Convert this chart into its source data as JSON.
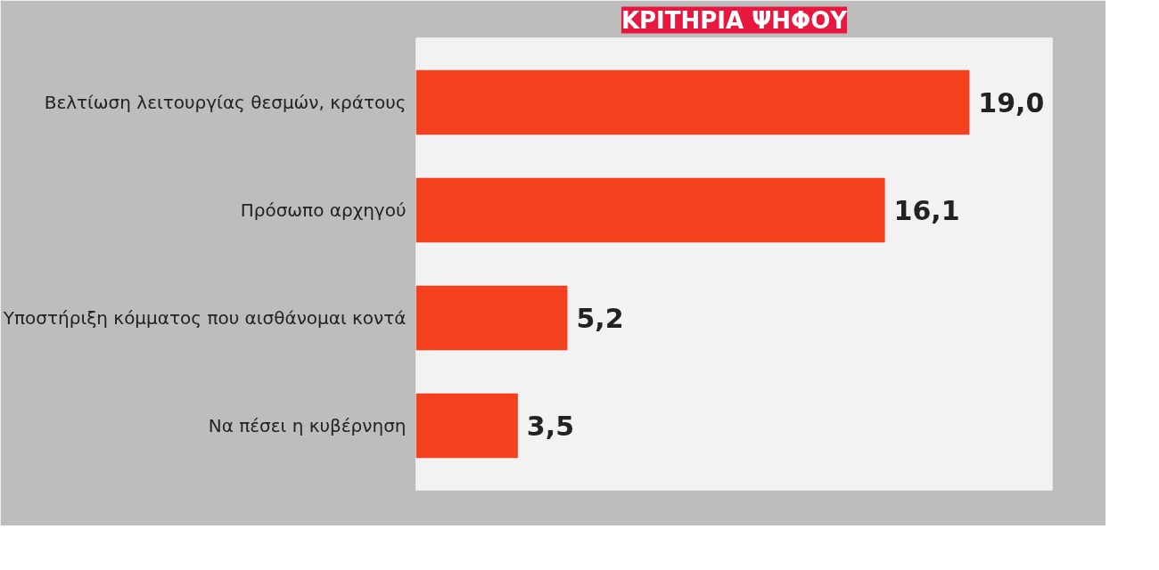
{
  "chart_data": {
    "type": "bar",
    "orientation": "horizontal",
    "title": "ΚΡΙΤΗΡΙΑ ΨΗΦΟΥ",
    "categories": [
      "Βελτίωση λειτουργίας θεσμών, κράτους",
      "Πρόσωπο αρχηγού",
      "Υποστήριξη κόμματος που αισθάνομαι κοντά",
      "Να πέσει η κυβέρνηση"
    ],
    "values": [
      19.0,
      16.1,
      5.2,
      3.5
    ],
    "value_labels": [
      "19,0",
      "16,1",
      "5,2",
      "3,5"
    ],
    "color": "#f4401c",
    "grid": false,
    "tick_labels": "y"
  }
}
